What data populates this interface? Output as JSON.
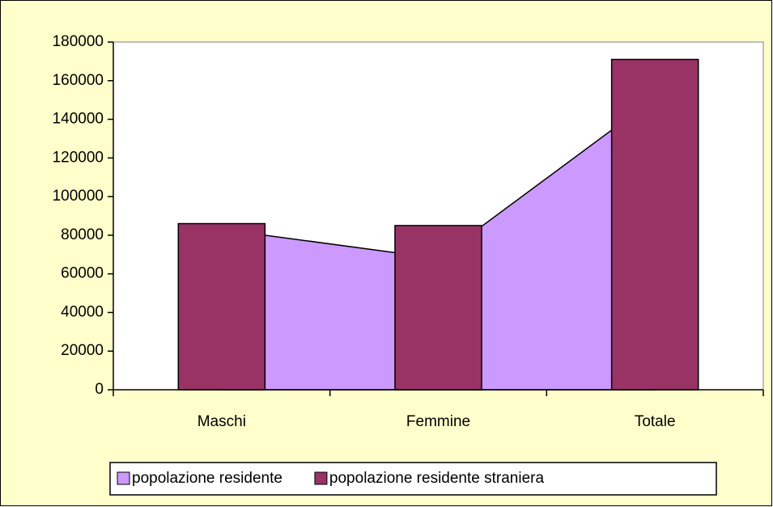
{
  "chart_data": {
    "type": "bar",
    "categories": [
      "Maschi",
      "Femmine",
      "Totale"
    ],
    "series": [
      {
        "name": "popolazione residente",
        "type": "area",
        "color": "#cc99ff",
        "values": [
          83000,
          68000,
          151000
        ]
      },
      {
        "name": "popolazione residente straniera",
        "type": "bar",
        "color": "#993366",
        "values": [
          86000,
          85000,
          171000
        ]
      }
    ],
    "ylim": [
      0,
      180000
    ],
    "yticks": [
      0,
      20000,
      40000,
      60000,
      80000,
      100000,
      120000,
      140000,
      160000,
      180000
    ],
    "legend": "bottom"
  }
}
